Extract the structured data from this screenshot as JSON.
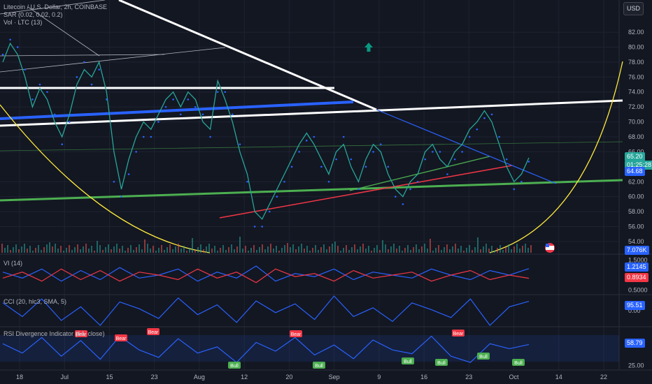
{
  "legend": {
    "main_title": "Litecoin / U.S. Dollar, 2h, COINBASE",
    "sar": "SAR (0.02, 0.02, 0.2)",
    "vol": "Vol · LTC (13)",
    "vi": "VI (14)",
    "cci": "CCI (20, hlc3, SMA, 5)",
    "rsi": "RSI Divergence Indicator (14, close)"
  },
  "currency_button": "USD",
  "price_badges": {
    "last_price": "65.20",
    "countdown": "01:25:28",
    "sar_value": "64.68",
    "volume": "7.076K",
    "vi_plus": "1.2145",
    "vi_minus": "0.8934",
    "cci_value": "95.51",
    "rsi_value": "58.79"
  },
  "colors": {
    "background": "#131722",
    "grid": "#1f2330",
    "price_line": "#26a69a",
    "price_alt": "#ef5350",
    "sar": "#2962ff",
    "vi_plus": "#2962ff",
    "vi_minus": "#f23645",
    "cci": "#2962ff",
    "rsi": "#2962ff",
    "white_trend": "#ffffff",
    "green_trend": "#4caf50",
    "blue_trend": "#2962ff",
    "yellow_arc": "#ffeb3b",
    "red_trend": "#f23645",
    "up_arrow": "#089981",
    "bear_label": "#f23645",
    "bull_label": "#4caf50"
  },
  "chart_data": [
    {
      "type": "line",
      "title": "Litecoin / U.S. Dollar, 2h, COINBASE",
      "x_tick_labels": [
        "18",
        "Jul",
        "15",
        "23",
        "Aug",
        "12",
        "20",
        "Sep",
        "9",
        "16",
        "23",
        "Oct",
        "14",
        "22"
      ],
      "y_tick_labels": [
        "82.00",
        "80.00",
        "78.00",
        "76.00",
        "74.00",
        "72.00",
        "70.00",
        "68.00",
        "66.00",
        "62.00",
        "60.00",
        "58.00",
        "56.00",
        "54.00"
      ],
      "ylim": [
        52.5,
        83.5
      ],
      "grid": true,
      "series": [
        {
          "name": "close",
          "values": [
            78,
            80.5,
            79,
            76,
            72,
            74.5,
            73,
            70,
            68,
            71,
            75,
            77,
            76,
            78,
            74,
            66,
            61,
            65,
            68,
            70,
            69,
            71,
            73,
            74,
            72,
            74,
            73,
            70,
            69,
            75.5,
            73,
            70,
            66,
            63,
            58,
            57,
            59,
            61,
            63,
            65,
            67,
            68.5,
            67,
            65,
            63,
            66,
            67,
            64,
            62,
            65,
            67,
            66,
            63,
            61,
            60,
            62,
            63,
            66,
            67,
            65,
            64,
            66,
            67,
            69,
            70,
            71.5,
            70,
            67,
            64,
            62,
            63,
            65.2
          ]
        },
        {
          "name": "SAR",
          "values": [
            79,
            81,
            80,
            77,
            73,
            75,
            74,
            71,
            67,
            70,
            76,
            78,
            75,
            77,
            73,
            62,
            60,
            63,
            66,
            68,
            68,
            70,
            72,
            73,
            71,
            73,
            72,
            71,
            68,
            74,
            74,
            71,
            67,
            62,
            56,
            56,
            58,
            60,
            62,
            64,
            66,
            67.5,
            68,
            64,
            62,
            65,
            68,
            65,
            61,
            64,
            66,
            67,
            64,
            60,
            59,
            61,
            62,
            65,
            66,
            66,
            63,
            65,
            66,
            68,
            69,
            70.5,
            71,
            68,
            65,
            61,
            62,
            64.68
          ]
        }
      ],
      "trendlines": [
        "white",
        "white",
        "white",
        "blue",
        "green",
        "green",
        "red",
        "blue",
        "yellow-arc"
      ]
    },
    {
      "type": "bar",
      "title": "Vol · LTC (13)",
      "values_note": "",
      "last_value": "7.076K"
    },
    {
      "type": "line",
      "title": "VI (14)",
      "y_tick_labels": [
        "1.5000",
        "0.5000"
      ],
      "ylim": [
        0.4,
        1.6
      ],
      "series": [
        {
          "name": "VI+",
          "values": [
            1.1,
            0.9,
            1.2,
            0.8,
            1.15,
            0.85,
            1.25,
            0.9,
            1.0,
            1.2,
            0.8,
            1.1,
            0.9,
            1.3,
            0.8,
            1.05,
            0.95,
            1.2,
            0.85,
            1.1,
            1.0,
            0.9,
            1.2,
            1.0,
            0.85,
            1.15,
            1.0,
            1.2145
          ]
        },
        {
          "name": "VI-",
          "values": [
            0.9,
            1.1,
            0.8,
            1.2,
            0.85,
            1.15,
            0.8,
            1.1,
            1.0,
            0.85,
            1.2,
            0.9,
            1.1,
            0.75,
            1.2,
            0.95,
            1.05,
            0.8,
            1.15,
            0.9,
            1.0,
            1.1,
            0.8,
            1.0,
            1.15,
            0.85,
            1.0,
            0.8934
          ]
        }
      ]
    },
    {
      "type": "line",
      "title": "CCI (20, hlc3, SMA, 5)",
      "y_tick_labels": [
        "0.00"
      ],
      "series": [
        {
          "name": "CCI",
          "values": [
            80,
            -60,
            120,
            -100,
            40,
            -150,
            90,
            20,
            -80,
            130,
            -40,
            60,
            -120,
            100,
            -20,
            70,
            -90,
            150,
            -60,
            30,
            -110,
            80,
            10,
            -70,
            120,
            -150,
            40,
            95.51
          ]
        }
      ]
    },
    {
      "type": "line",
      "title": "RSI Divergence Indicator (14, close)",
      "y_tick_labels": [
        "25.00"
      ],
      "ylim": [
        20,
        85
      ],
      "series": [
        {
          "name": "RSI",
          "values": [
            60,
            45,
            70,
            40,
            65,
            35,
            72,
            50,
            38,
            68,
            45,
            55,
            30,
            62,
            48,
            70,
            42,
            58,
            36,
            66,
            50,
            44,
            72,
            40,
            30,
            60,
            52,
            58.79
          ]
        }
      ],
      "annotations": [
        "Bear",
        "Bear",
        "Bear",
        "Bear",
        "Bear",
        "Bull",
        "Bull",
        "Bull",
        "Bull",
        "Bull",
        "Bull"
      ]
    }
  ]
}
